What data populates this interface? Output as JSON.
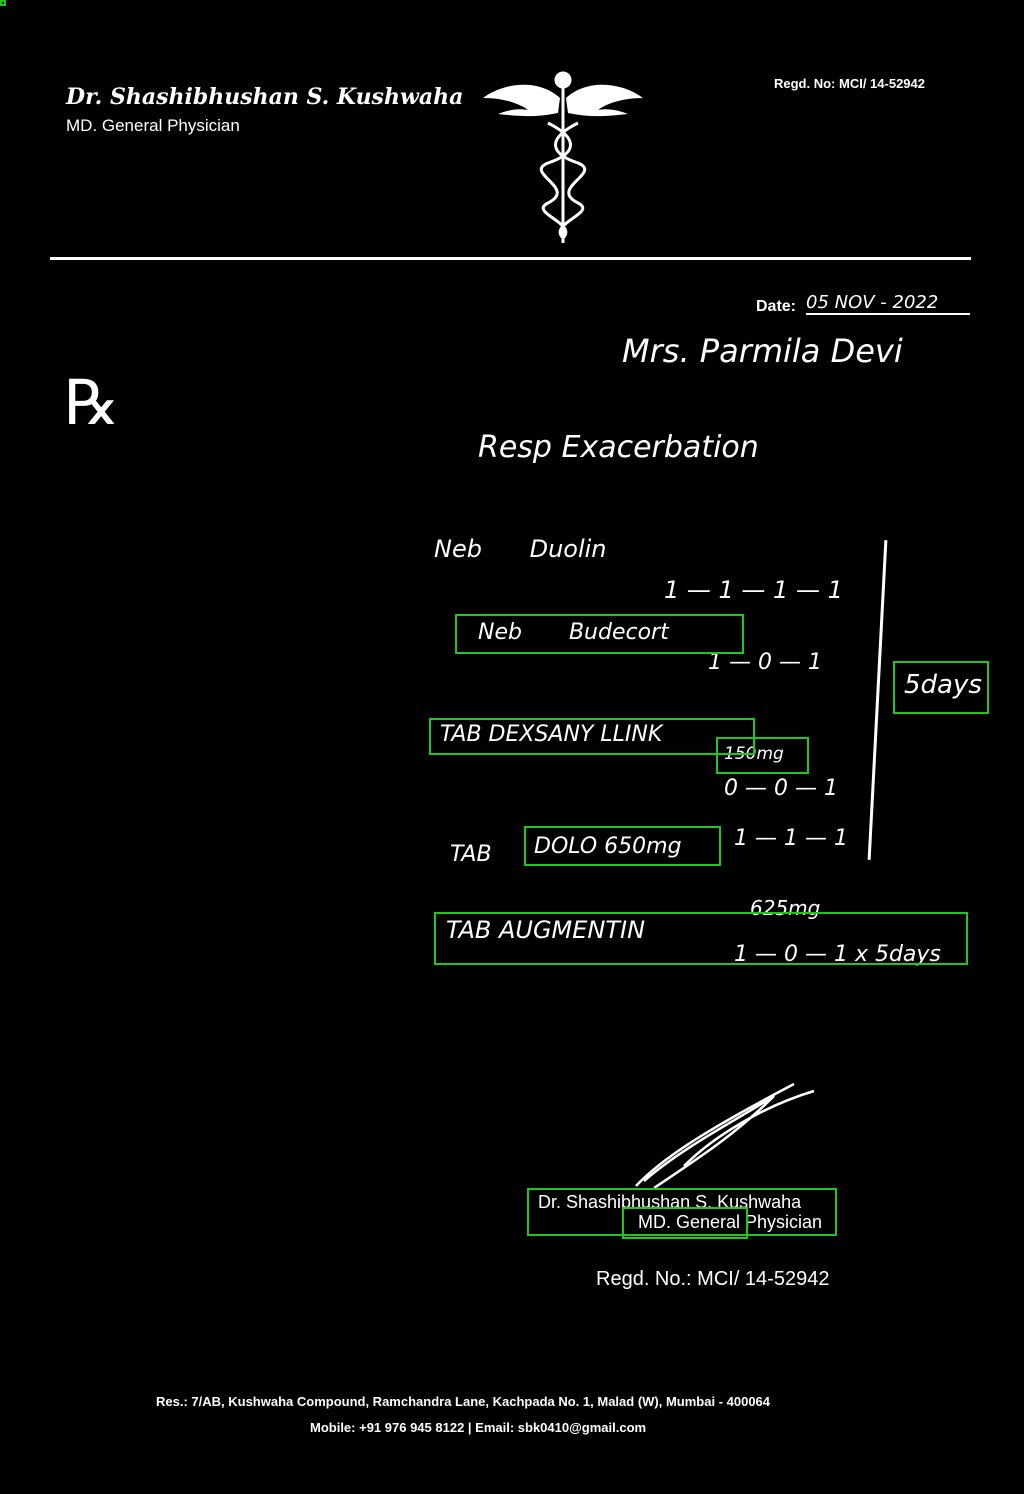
{
  "colors": {
    "background": "#000000",
    "ink": "#ffffff",
    "detection_box": "#22c51e"
  },
  "header": {
    "doctor_name": "Dr. Shashibhushan S. Kushwaha",
    "qualification": "MD. General Physician",
    "regd": "Regd. No: MCI/ 14-52942",
    "logo_icon": "caduceus-icon"
  },
  "date": {
    "label": "Date:",
    "value": "05 NOV - 2022"
  },
  "rx_symbol": "℞",
  "patient": "Mrs. Parmila Devi",
  "diagnosis": "Resp Exacerbation",
  "prescription": {
    "lines": [
      {
        "text": "Neb",
        "extra": "Duolin",
        "dose": "1 — 1 — 1 — 1"
      },
      {
        "text": "Neb",
        "extra": "Budecort",
        "dose": "1 — 0 — 1"
      },
      {
        "text": "TAB DEXSANY LLINK",
        "extra": "150mg",
        "dose": "0 — 0 — 1"
      },
      {
        "text": "TAB",
        "extra": "DOLO 650mg",
        "dose": "1 — 1 — 1"
      },
      {
        "text": "TAB AUGMENTIN",
        "extra": "625mg",
        "dose": "1 — 0 — 1  x 5days"
      }
    ],
    "duration": "5days"
  },
  "stamp": {
    "name": "Dr. Shashibhushan S. Kushwaha",
    "qualification": "MD. General Physician",
    "regd": "Regd. No.: MCI/ 14-52942"
  },
  "footer": {
    "address": "Res.: 7/AB, Kushwaha Compound, Ramchandra Lane, Kachpada No. 1, Malad (W), Mumbai - 400064",
    "contact": "Mobile: +91 976 945 8122 | Email: sbk0410@gmail.com"
  }
}
